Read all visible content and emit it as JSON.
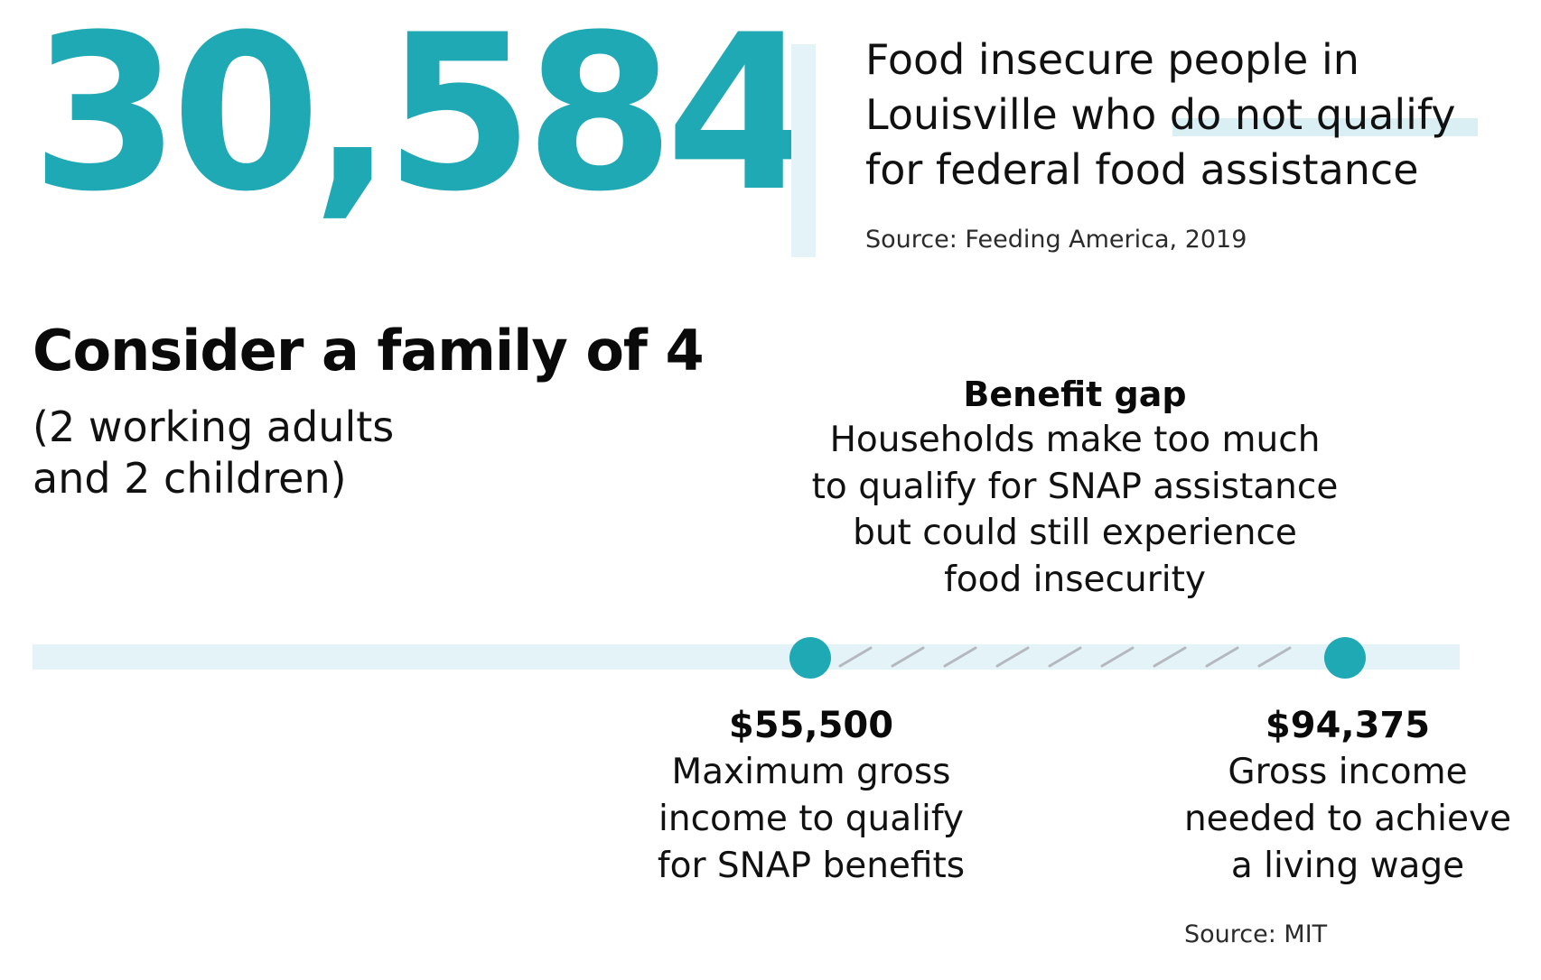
{
  "stat": {
    "number": "30,584",
    "headline_lines": [
      "Food insecure people in",
      "Louisville who do not qualify",
      "for federal food assistance"
    ],
    "source": "Source: Feeding America, 2019"
  },
  "family": {
    "title": "Consider a family of 4",
    "subtitle_lines": [
      "(2 working adults",
      "and 2 children)"
    ]
  },
  "gap": {
    "title": "Benefit gap",
    "body_lines": [
      "Households make too much",
      "to qualify for SNAP assistance",
      "but could still experience",
      "food insecurity"
    ]
  },
  "markers": [
    {
      "amount": "$55,500",
      "desc_lines": [
        "Maximum gross",
        "income to qualify",
        "for SNAP benefits"
      ]
    },
    {
      "amount": "$94,375",
      "desc_lines": [
        "Gross income",
        "needed to achieve",
        "a living wage"
      ]
    }
  ],
  "source_bottom": "Source: MIT",
  "colors": {
    "accent": "#1fa9b5",
    "track": "#e4f3f7",
    "hatch": "#b5b9bf",
    "text": "#111111"
  }
}
